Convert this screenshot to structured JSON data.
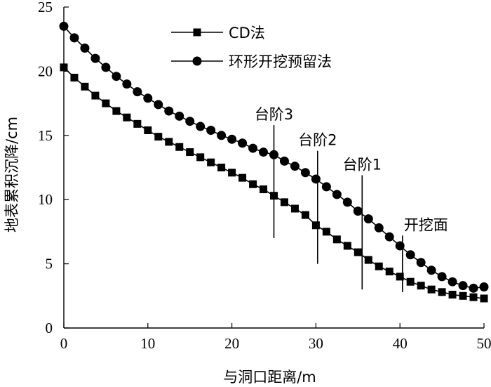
{
  "chart_data": {
    "type": "line",
    "xlabel": "与洞口距离/m",
    "ylabel": "地表累积沉降/cm",
    "xlim": [
      0,
      50
    ],
    "ylim": [
      0,
      25
    ],
    "xticks": [
      0,
      10,
      20,
      30,
      40,
      50
    ],
    "yticks": [
      0,
      5,
      10,
      15,
      20,
      25
    ],
    "grid": false,
    "legend_position": "top-left",
    "x": [
      0,
      1.25,
      2.5,
      3.75,
      5,
      6.25,
      7.5,
      8.75,
      10,
      11.25,
      12.5,
      13.75,
      15,
      16.25,
      17.5,
      18.75,
      20,
      21.25,
      22.5,
      23.75,
      25,
      26.25,
      27.5,
      28.75,
      30,
      31.25,
      32.5,
      33.75,
      35,
      36.25,
      37.5,
      38.75,
      40,
      41.25,
      42.5,
      43.75,
      45,
      46.25,
      47.5,
      48.75,
      50
    ],
    "series": [
      {
        "name": "CD法",
        "marker": "square",
        "values": [
          20.3,
          19.5,
          18.8,
          18.1,
          17.5,
          16.9,
          16.4,
          15.9,
          15.4,
          14.9,
          14.5,
          14.1,
          13.7,
          13.3,
          12.9,
          12.5,
          12.1,
          11.7,
          11.2,
          10.8,
          10.3,
          9.8,
          9.3,
          8.8,
          8.0,
          7.5,
          6.9,
          6.4,
          5.9,
          5.3,
          4.8,
          4.4,
          4.0,
          3.6,
          3.3,
          3.0,
          2.8,
          2.6,
          2.5,
          2.4,
          2.3
        ]
      },
      {
        "name": "环形开挖预留法",
        "marker": "circle",
        "values": [
          23.5,
          22.6,
          21.8,
          21.0,
          20.3,
          19.6,
          19.0,
          18.4,
          17.9,
          17.4,
          16.9,
          16.5,
          16.1,
          15.7,
          15.4,
          15.0,
          14.7,
          14.4,
          14.0,
          13.7,
          13.5,
          13.0,
          12.6,
          12.1,
          11.6,
          11.0,
          10.4,
          9.8,
          9.1,
          8.5,
          7.8,
          7.1,
          6.4,
          5.7,
          5.1,
          4.5,
          4.0,
          3.6,
          3.3,
          3.1,
          3.2
        ]
      }
    ],
    "annotations": [
      {
        "label": "台阶3",
        "x": 25,
        "y_bottom": 7.0,
        "y_top": 15.8
      },
      {
        "label": "台阶2",
        "x": 30.2,
        "y_bottom": 5.0,
        "y_top": 13.8
      },
      {
        "label": "台阶1",
        "x": 35.5,
        "y_bottom": 3.0,
        "y_top": 11.9
      },
      {
        "label": "开挖面",
        "x": 40.3,
        "y_bottom": 2.8,
        "y_top": 7.2
      }
    ]
  }
}
